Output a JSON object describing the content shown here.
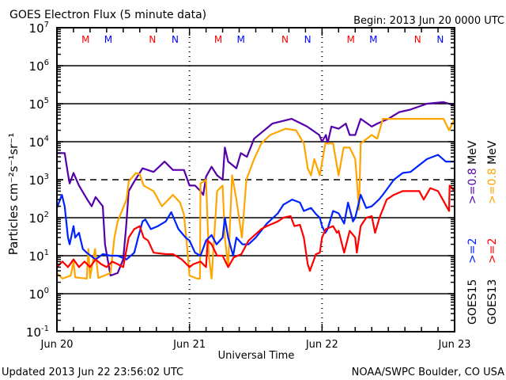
{
  "chart_data": {
    "type": "line",
    "title": "GOES Electron Flux (5 minute data)",
    "begin_label": "Begin: 2013 Jun 20 0000 UTC",
    "xlabel": "Universal Time",
    "ylabel": "Particles cm⁻²s⁻¹sr⁻¹",
    "y_scale": "log",
    "ylim": [
      0.1,
      10000000
    ],
    "y_ticks": [
      {
        "base": "10",
        "exp": "7"
      },
      {
        "base": "10",
        "exp": "6"
      },
      {
        "base": "10",
        "exp": "5"
      },
      {
        "base": "10",
        "exp": "4"
      },
      {
        "base": "10",
        "exp": "3"
      },
      {
        "base": "10",
        "exp": "2"
      },
      {
        "base": "10",
        "exp": "1"
      },
      {
        "base": "10",
        "exp": "0"
      },
      {
        "base": "10",
        "exp": "-1"
      }
    ],
    "x_unit": "hours since 2013 Jun 20 0000 UTC",
    "xlim": [
      0,
      72
    ],
    "x_ticks": [
      "Jun 20",
      "Jun 21",
      "Jun 22",
      "Jun 23"
    ],
    "threshold_dashed": 1000,
    "top_markers": [
      {
        "label": "M",
        "color": "#ff0000"
      },
      {
        "label": "M",
        "color": "#0000ff"
      },
      {
        "label": "N",
        "color": "#ff0000"
      },
      {
        "label": "N",
        "color": "#0000ff"
      }
    ],
    "legend": {
      "satellites": [
        "GOES15",
        "GOES13"
      ],
      "entries": [
        {
          "label": ">=0.8 MeV",
          "satellite": "GOES15",
          "color": "#5500aa"
        },
        {
          "label": ">=0.8 MeV",
          "satellite": "GOES13",
          "color": "#ffa500"
        },
        {
          "label": ">=2",
          "satellite": "GOES15",
          "color": "#0022ff"
        },
        {
          "label": ">=2",
          "satellite": "GOES13",
          "color": "#ff0000"
        }
      ]
    },
    "series": [
      {
        "name": "GOES15 >=0.8 MeV",
        "color": "#5500aa",
        "points": [
          [
            0,
            5000
          ],
          [
            1.4,
            5000
          ],
          [
            2,
            1400
          ],
          [
            2.3,
            800
          ],
          [
            3,
            1500
          ],
          [
            4,
            700
          ],
          [
            5.5,
            300
          ],
          [
            6.3,
            200
          ],
          [
            7,
            350
          ],
          [
            8.3,
            200
          ],
          [
            8.7,
            20
          ],
          [
            9.7,
            3
          ],
          [
            11,
            3.5
          ],
          [
            12,
            8
          ],
          [
            12.5,
            50
          ],
          [
            13,
            500
          ],
          [
            14,
            900
          ],
          [
            15.5,
            2000
          ],
          [
            17.5,
            1600
          ],
          [
            19.5,
            3000
          ],
          [
            21,
            1800
          ],
          [
            23,
            1800
          ],
          [
            24,
            700
          ],
          [
            25,
            700
          ],
          [
            26,
            500
          ],
          [
            26.5,
            400
          ],
          [
            27,
            1200
          ],
          [
            28,
            2200
          ],
          [
            29,
            1300
          ],
          [
            30,
            1000
          ],
          [
            30.4,
            7000
          ],
          [
            31,
            3000
          ],
          [
            32.5,
            2000
          ],
          [
            33.3,
            5000
          ],
          [
            34.4,
            4000
          ],
          [
            35.7,
            12000
          ],
          [
            39,
            30000
          ],
          [
            42.5,
            40000
          ],
          [
            45.3,
            25000
          ],
          [
            47.5,
            15000
          ],
          [
            48,
            10000
          ],
          [
            48.7,
            15000
          ],
          [
            49,
            9000
          ],
          [
            49.7,
            25000
          ],
          [
            51,
            22000
          ],
          [
            52.3,
            30000
          ],
          [
            53,
            15000
          ],
          [
            54,
            15000
          ],
          [
            55,
            40000
          ],
          [
            57,
            25000
          ],
          [
            58,
            30000
          ],
          [
            60,
            40000
          ],
          [
            62,
            60000
          ],
          [
            64,
            70000
          ],
          [
            67,
            100000
          ],
          [
            70,
            110000
          ],
          [
            72,
            90000
          ]
        ]
      },
      {
        "name": "GOES13 >=0.8 MeV",
        "color": "#ffa500",
        "points": [
          [
            0,
            3.5
          ],
          [
            1,
            2.5
          ],
          [
            2.5,
            3
          ],
          [
            3,
            7
          ],
          [
            3.3,
            2.7
          ],
          [
            5.4,
            2.5
          ],
          [
            5.7,
            15
          ],
          [
            6,
            2.6
          ],
          [
            6.9,
            15
          ],
          [
            7.5,
            2.6
          ],
          [
            9.7,
            3.5
          ],
          [
            10.4,
            30
          ],
          [
            11,
            80
          ],
          [
            12.6,
            300
          ],
          [
            13,
            900
          ],
          [
            14.3,
            1500
          ],
          [
            15,
            1400
          ],
          [
            15.7,
            700
          ],
          [
            17.5,
            500
          ],
          [
            19,
            200
          ],
          [
            21,
            400
          ],
          [
            22.3,
            250
          ],
          [
            23,
            120
          ],
          [
            23.6,
            15
          ],
          [
            24,
            3
          ],
          [
            25.4,
            2.5
          ],
          [
            25.9,
            2.5
          ],
          [
            26,
            800
          ],
          [
            27,
            1000
          ],
          [
            27.5,
            10
          ],
          [
            28,
            2.5
          ],
          [
            29,
            500
          ],
          [
            30,
            700
          ],
          [
            30.4,
            30
          ],
          [
            31,
            5
          ],
          [
            31.7,
            1300
          ],
          [
            32.5,
            300
          ],
          [
            33.5,
            30
          ],
          [
            34.3,
            1000
          ],
          [
            35.7,
            3500
          ],
          [
            37,
            9000
          ],
          [
            38.6,
            15000
          ],
          [
            41.4,
            22000
          ],
          [
            43.3,
            20000
          ],
          [
            44.7,
            9000
          ],
          [
            45.4,
            2000
          ],
          [
            46,
            1300
          ],
          [
            46.6,
            3500
          ],
          [
            47.6,
            1300
          ],
          [
            48.6,
            9000
          ],
          [
            50,
            9000
          ],
          [
            51,
            1300
          ],
          [
            51.9,
            7000
          ],
          [
            53,
            7000
          ],
          [
            54,
            3500
          ],
          [
            54.3,
            1000
          ],
          [
            54.7,
            160
          ],
          [
            55,
            9000
          ],
          [
            57,
            15000
          ],
          [
            58,
            12000
          ],
          [
            59,
            40000
          ],
          [
            61,
            40000
          ],
          [
            62.6,
            40000
          ],
          [
            67,
            40000
          ],
          [
            70,
            40000
          ],
          [
            71,
            20000
          ],
          [
            72,
            40000
          ]
        ]
      },
      {
        "name": "GOES15 >=2 MeV",
        "color": "#0022ff",
        "points": [
          [
            0,
            180
          ],
          [
            0.9,
            400
          ],
          [
            1.4,
            200
          ],
          [
            2,
            30
          ],
          [
            2.3,
            20
          ],
          [
            3,
            60
          ],
          [
            3.3,
            30
          ],
          [
            4,
            40
          ],
          [
            4.7,
            15
          ],
          [
            5.4,
            12
          ],
          [
            7,
            8
          ],
          [
            8.3,
            11
          ],
          [
            9.7,
            10
          ],
          [
            11,
            10
          ],
          [
            12.6,
            8
          ],
          [
            14,
            12
          ],
          [
            14.7,
            30
          ],
          [
            15.5,
            80
          ],
          [
            16,
            90
          ],
          [
            17,
            50
          ],
          [
            18.3,
            60
          ],
          [
            19.7,
            80
          ],
          [
            20.7,
            140
          ],
          [
            22,
            50
          ],
          [
            23.3,
            30
          ],
          [
            24,
            25
          ],
          [
            25,
            12
          ],
          [
            26,
            10
          ],
          [
            27,
            25
          ],
          [
            28,
            35
          ],
          [
            28.9,
            20
          ],
          [
            30,
            30
          ],
          [
            30.4,
            100
          ],
          [
            31,
            30
          ],
          [
            31.9,
            10
          ],
          [
            32.5,
            30
          ],
          [
            33.6,
            20
          ],
          [
            34.7,
            20
          ],
          [
            36,
            30
          ],
          [
            38,
            70
          ],
          [
            40,
            130
          ],
          [
            41,
            220
          ],
          [
            42.6,
            300
          ],
          [
            44,
            250
          ],
          [
            44.7,
            150
          ],
          [
            46,
            180
          ],
          [
            47,
            120
          ],
          [
            47.6,
            100
          ],
          [
            48,
            60
          ],
          [
            48.6,
            40
          ],
          [
            49,
            50
          ],
          [
            50,
            150
          ],
          [
            51,
            130
          ],
          [
            52,
            70
          ],
          [
            52.7,
            250
          ],
          [
            53.6,
            80
          ],
          [
            54,
            100
          ],
          [
            55,
            400
          ],
          [
            56,
            180
          ],
          [
            57,
            200
          ],
          [
            58.3,
            300
          ],
          [
            59,
            400
          ],
          [
            61,
            1000
          ],
          [
            62.6,
            1500
          ],
          [
            64,
            1600
          ],
          [
            67,
            3500
          ],
          [
            69,
            4500
          ],
          [
            70.4,
            3000
          ],
          [
            72,
            3000
          ]
        ]
      },
      {
        "name": "GOES13 >=2 MeV",
        "color": "#ff0000",
        "points": [
          [
            0,
            5
          ],
          [
            1,
            7
          ],
          [
            2,
            5
          ],
          [
            3,
            8
          ],
          [
            4,
            5
          ],
          [
            5,
            7
          ],
          [
            6,
            5
          ],
          [
            7,
            8
          ],
          [
            8,
            6
          ],
          [
            9,
            5
          ],
          [
            10,
            7
          ],
          [
            11,
            6
          ],
          [
            12,
            5
          ],
          [
            13,
            30
          ],
          [
            14,
            50
          ],
          [
            15,
            60
          ],
          [
            15.7,
            30
          ],
          [
            16.5,
            25
          ],
          [
            17.5,
            12
          ],
          [
            19.7,
            11
          ],
          [
            21,
            11
          ],
          [
            22.6,
            8
          ],
          [
            24,
            5
          ],
          [
            24.7,
            6
          ],
          [
            26,
            7
          ],
          [
            27,
            5
          ],
          [
            27.3,
            25
          ],
          [
            28,
            20
          ],
          [
            29,
            10
          ],
          [
            30,
            10
          ],
          [
            31,
            5
          ],
          [
            32,
            9
          ],
          [
            33.4,
            11
          ],
          [
            34.7,
            25
          ],
          [
            37,
            50
          ],
          [
            38,
            60
          ],
          [
            40,
            80
          ],
          [
            41,
            100
          ],
          [
            42.3,
            110
          ],
          [
            43,
            60
          ],
          [
            44,
            65
          ],
          [
            44.7,
            30
          ],
          [
            45.4,
            6
          ],
          [
            45.8,
            4
          ],
          [
            46.9,
            11
          ],
          [
            47.6,
            12
          ],
          [
            48,
            30
          ],
          [
            48.7,
            50
          ],
          [
            50,
            60
          ],
          [
            50.7,
            40
          ],
          [
            51,
            45
          ],
          [
            52,
            12
          ],
          [
            53,
            45
          ],
          [
            54,
            30
          ],
          [
            54.3,
            12
          ],
          [
            55,
            60
          ],
          [
            56,
            100
          ],
          [
            57,
            110
          ],
          [
            57.6,
            40
          ],
          [
            58.4,
            100
          ],
          [
            59.7,
            300
          ],
          [
            61,
            400
          ],
          [
            62.6,
            500
          ],
          [
            65.6,
            500
          ],
          [
            66.4,
            300
          ],
          [
            67.6,
            600
          ],
          [
            69,
            500
          ],
          [
            71,
            150
          ],
          [
            71.1,
            700
          ],
          [
            72,
            500
          ]
        ]
      }
    ]
  },
  "footer": {
    "updated": "Updated 2013 Jun 22 23:56:02 UTC",
    "source": "NOAA/SWPC Boulder, CO USA"
  }
}
